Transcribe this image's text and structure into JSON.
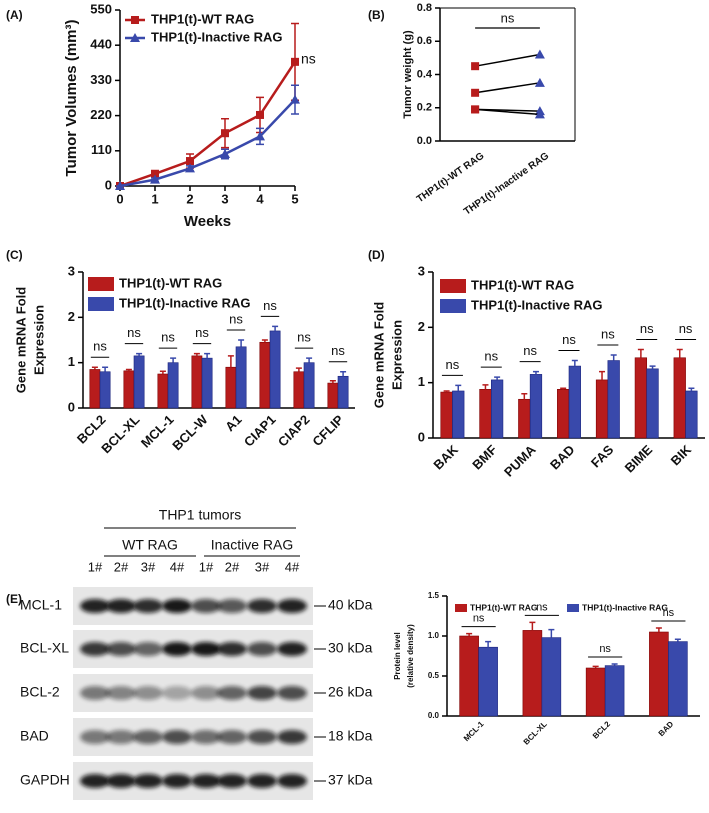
{
  "panel_labels": [
    "(A)",
    "(B)",
    "(C)",
    "(D)",
    "(E)"
  ],
  "chart_data": [
    {
      "type": "line",
      "ylabel": "Tumor Volumes (mm³)",
      "xlabel": "Weeks",
      "x": [
        0,
        1,
        2,
        3,
        4,
        5
      ],
      "xlim": [
        0,
        5
      ],
      "xticks": [
        0,
        1,
        2,
        3,
        4,
        5
      ],
      "ylim": [
        0,
        550
      ],
      "yticks": [
        0,
        110,
        220,
        330,
        440,
        550
      ],
      "series": [
        {
          "name": "THP1(t)-WT RAG",
          "color": "#b71c1c",
          "marker": "square",
          "values": [
            0,
            38,
            78,
            165,
            222,
            388
          ],
          "errors": [
            0,
            10,
            22,
            45,
            55,
            120
          ]
        },
        {
          "name": "THP1(t)-Inactive RAG",
          "color": "#3949ab",
          "marker": "triangle",
          "values": [
            0,
            20,
            55,
            100,
            155,
            270
          ],
          "errors": [
            0,
            5,
            8,
            15,
            25,
            45
          ]
        }
      ],
      "annotations": [
        "ns"
      ],
      "legend": "upper left"
    },
    {
      "type": "paired",
      "ylabel": "Tumor weight (g)",
      "categories": [
        "THP1(t)-WT RAG",
        "THP1(t)-Inactive RAG"
      ],
      "ylim": [
        0,
        0.8
      ],
      "yticks": [
        {
          "value": 0,
          "label": "0.0"
        },
        0.2,
        0.4,
        0.6,
        0.8
      ],
      "series": [
        {
          "values": [
            0.45,
            0.52
          ]
        },
        {
          "values": [
            0.29,
            0.35
          ]
        },
        {
          "values": [
            0.19,
            0.18
          ]
        },
        {
          "values": [
            0.19,
            0.16
          ]
        }
      ],
      "marker_colors": [
        "#b71c1c",
        "#3949ab"
      ],
      "annotations": [
        "ns"
      ]
    },
    {
      "type": "bar",
      "ylabel": [
        "Gene mRNA Fold",
        "Expression"
      ],
      "categories": [
        "BCL2",
        "BCL-XL",
        "MCL-1",
        "BCL-W",
        "A1",
        "CIAP1",
        "CIAP2",
        "CFLIP"
      ],
      "ylim": [
        0,
        3
      ],
      "yticks": [
        0,
        1,
        2,
        3
      ],
      "series": [
        {
          "name": "THP1(t)-WT RAG",
          "color": "#b71c1c",
          "values": [
            0.85,
            0.82,
            0.75,
            1.15,
            0.9,
            1.45,
            0.8,
            0.55
          ],
          "errors": [
            0.05,
            0.03,
            0.06,
            0.05,
            0.25,
            0.05,
            0.08,
            0.05
          ]
        },
        {
          "name": "THP1(t)-Inactive RAG",
          "color": "#3949ab",
          "values": [
            0.8,
            1.15,
            1.0,
            1.1,
            1.35,
            1.7,
            1.0,
            0.7
          ],
          "errors": [
            0.1,
            0.05,
            0.1,
            0.1,
            0.15,
            0.1,
            0.1,
            0.1
          ]
        }
      ],
      "annotations": [
        "ns",
        "ns",
        "ns",
        "ns",
        "ns",
        "ns",
        "ns",
        "ns"
      ],
      "legend": "upper left"
    },
    {
      "type": "bar",
      "ylabel": [
        "Gene mRNA Fold",
        "Expression"
      ],
      "categories": [
        "BAK",
        "BMF",
        "PUMA",
        "BAD",
        "FAS",
        "BIME",
        "BIK"
      ],
      "ylim": [
        0,
        3
      ],
      "yticks": [
        0,
        1,
        2,
        3
      ],
      "series": [
        {
          "name": "THP1(t)-WT RAG",
          "color": "#b71c1c",
          "values": [
            0.83,
            0.88,
            0.7,
            0.88,
            1.05,
            1.45,
            1.45
          ],
          "errors": [
            0.02,
            0.08,
            0.1,
            0.02,
            0.15,
            0.15,
            0.15
          ]
        },
        {
          "name": "THP1(t)-Inactive RAG",
          "color": "#3949ab",
          "values": [
            0.85,
            1.05,
            1.15,
            1.3,
            1.4,
            1.25,
            0.85
          ],
          "errors": [
            0.1,
            0.05,
            0.05,
            0.1,
            0.1,
            0.05,
            0.05
          ]
        }
      ],
      "annotations": [
        "ns",
        "ns",
        "ns",
        "ns",
        "ns",
        "ns",
        "ns"
      ],
      "legend": "upper left"
    },
    {
      "type": "bar",
      "ylabel": [
        "Protein level",
        "(relative density)"
      ],
      "categories": [
        "MCL-1",
        "BCL-XL",
        "BCL2",
        "BAD"
      ],
      "ylim": [
        0,
        1.5
      ],
      "yticks": [
        {
          "value": 0,
          "label": "0.0"
        },
        0.5,
        {
          "value": 1,
          "label": "1.0"
        },
        1.5
      ],
      "series": [
        {
          "name": "THP1(t)-WT RAG",
          "color": "#b71c1c",
          "values": [
            1.0,
            1.07,
            0.6,
            1.05
          ],
          "errors": [
            0.03,
            0.1,
            0.02,
            0.05
          ]
        },
        {
          "name": "THP1(t)-Inactive RAG",
          "color": "#3949ab",
          "values": [
            0.86,
            0.98,
            0.63,
            0.93
          ],
          "errors": [
            0.07,
            0.1,
            0.02,
            0.03
          ]
        }
      ],
      "annotations": [
        "ns",
        "ns",
        "ns",
        "ns"
      ],
      "legend": "upper center"
    }
  ],
  "blot": {
    "title": "THP1 tumors",
    "groups": [
      "WT RAG",
      "Inactive RAG"
    ],
    "lanes": [
      "1#",
      "2#",
      "3#",
      "4#",
      "1#",
      "2#",
      "3#",
      "4#"
    ],
    "proteins": [
      "MCL-1",
      "BCL-XL",
      "BCL-2",
      "BAD",
      "GAPDH"
    ],
    "sizes": [
      "40 kDa",
      "30 kDa",
      "26 kDa",
      "18 kDa",
      "37 kDa"
    ]
  }
}
